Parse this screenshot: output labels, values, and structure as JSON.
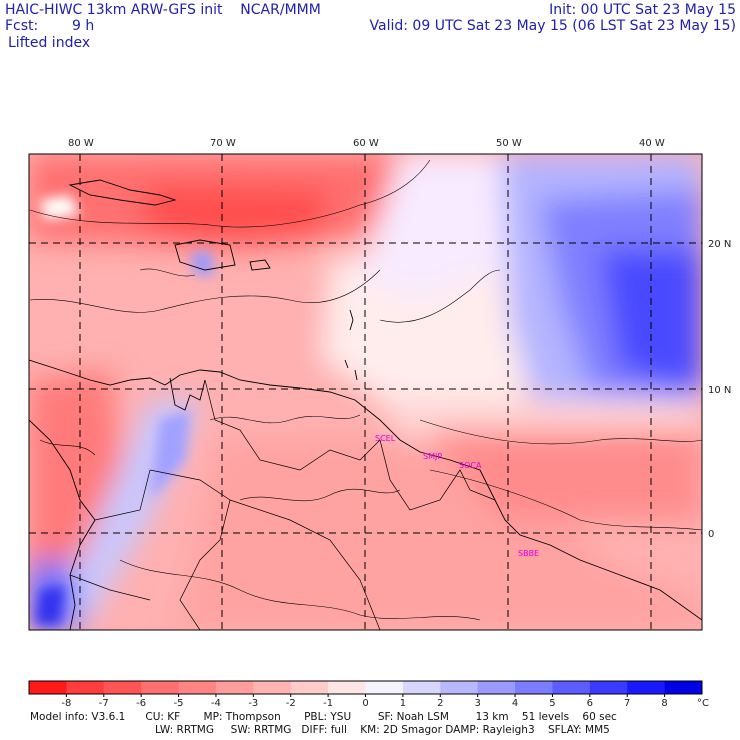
{
  "header": {
    "line1_left": "HAIC-HIWC 13km ARW-GFS init    NCAR/MMM",
    "line1_right": "Init: 00 UTC Sat 23 May 15",
    "line2_left_label": "Fcst:",
    "line2_left_value": "9 h",
    "line2_right": "Valid: 09 UTC Sat 23 May 15 (06 LST Sat 23 May 15)",
    "field_name": "Lifted index"
  },
  "map": {
    "lon_labels": [
      "80 W",
      "70 W",
      "60 W",
      "50 W",
      "40 W"
    ],
    "lat_labels": [
      "20 N",
      "10 N",
      "0"
    ],
    "stations": [
      "SCEL",
      "SMJP",
      "SOCA",
      "SBBE"
    ]
  },
  "colorbar": {
    "ticks": [
      "-8",
      "-7",
      "-6",
      "-5",
      "-4",
      "-3",
      "-2",
      "-1",
      "0",
      "1",
      "2",
      "3",
      "4",
      "5",
      "6",
      "7",
      "8"
    ],
    "unit": "°C",
    "colors": [
      "#ff1a1a",
      "#ff3d3d",
      "#ff5555",
      "#ff6f6f",
      "#ff8585",
      "#ff9c9c",
      "#ffb3b3",
      "#ffcccc",
      "#ffe6e6",
      "#f4f4ff",
      "#d6d6ff",
      "#b8b8ff",
      "#9a9aff",
      "#7c7cff",
      "#5c5cff",
      "#3b3bff",
      "#1a1aff",
      "#0000e6"
    ]
  },
  "model_info": {
    "line1": "Model info: V3.6.1      CU: KF       MP: Thompson       PBL: YSU        SF: Noah LSM        13 km    51 levels    60 sec",
    "line2": "LW: RRTMG     SW: RRTMG   DIFF: full    KM: 2D Smagor DAMP: Rayleigh3    SFLAY: MM5"
  }
}
